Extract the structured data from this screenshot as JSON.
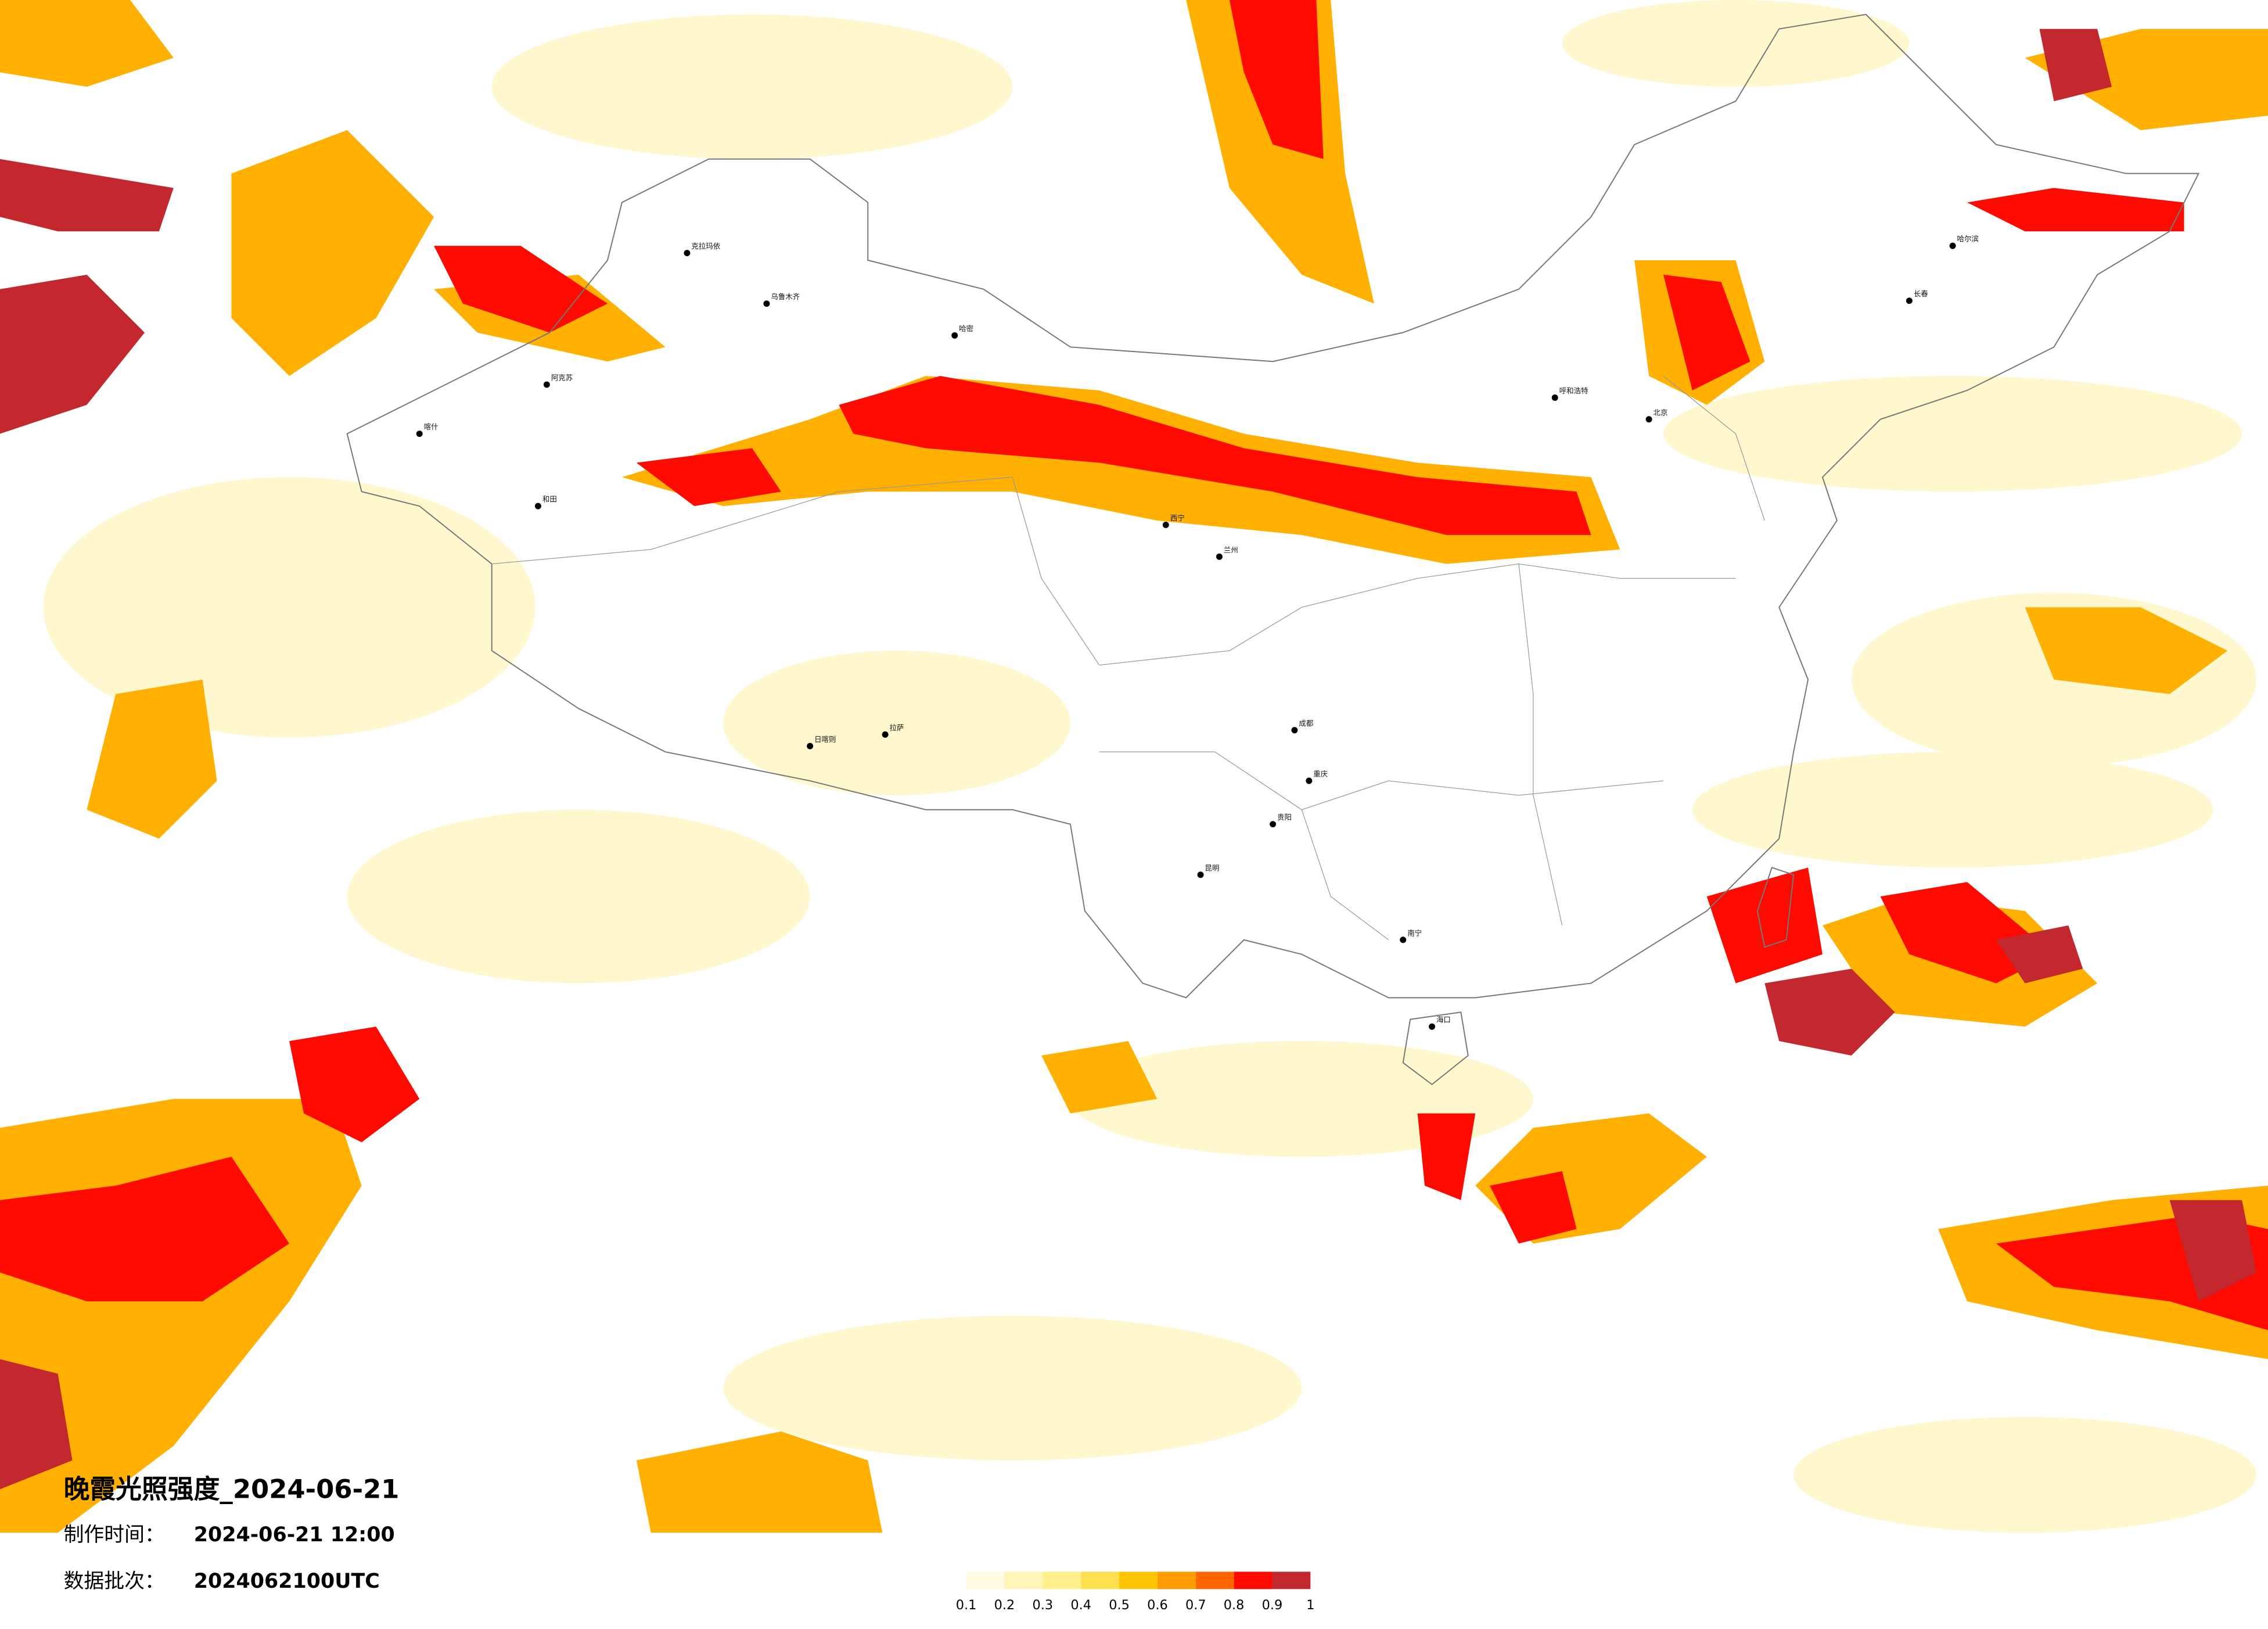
{
  "map": {
    "title": "晚霞光照强度_2024-06-21",
    "made_label": "制作时间：",
    "made_time": "2024-06-21 12:00",
    "batch_label": "数据批次：",
    "batch": "2024062100UTC",
    "legend": {
      "colors": [
        "#fffbe0",
        "#fff5b8",
        "#ffef8a",
        "#ffe04e",
        "#ffc400",
        "#ff9c00",
        "#ff6600",
        "#ff0a00",
        "#c3282e"
      ],
      "ticks": [
        0.1,
        0.2,
        0.3,
        0.4,
        0.5,
        0.6,
        0.7,
        0.8,
        0.9,
        1
      ]
    },
    "cities": [
      "克拉玛依",
      "乌鲁木齐",
      "哈密",
      "喀什",
      "和田",
      "阿克苏",
      "拉萨",
      "日喀则",
      "西宁",
      "兰州",
      "成都",
      "昆明",
      "北京",
      "哈尔滨",
      "长春",
      "呼和浩特",
      "南宁",
      "海口",
      "重庆",
      "贵阳"
    ]
  }
}
